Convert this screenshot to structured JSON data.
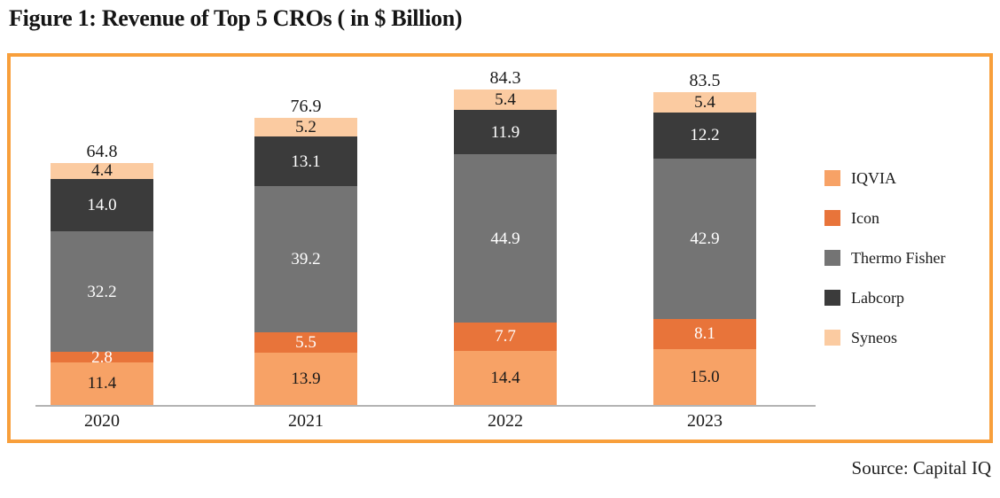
{
  "figure": {
    "title": "Figure 1: Revenue of Top 5 CROs ( in $ Billion)",
    "source": "Source: Capital IQ"
  },
  "colors": {
    "frame_border": "#F89F3B",
    "axis_line": "#B3B3B3",
    "text_dark": "#1A1A1A",
    "text_light": "#FFFFFF"
  },
  "chart_data": {
    "type": "bar",
    "stacked": true,
    "title": "Revenue of Top 5 CROs (in $ Billion)",
    "xlabel": "",
    "ylabel": "",
    "grid": false,
    "value_labels": true,
    "legend_position": "right",
    "categories": [
      "2020",
      "2021",
      "2022",
      "2023"
    ],
    "series": [
      {
        "name": "IQVIA",
        "color": "#F7A266",
        "label_color": "#1A1A1A",
        "values": [
          11.4,
          13.9,
          14.4,
          15.0
        ]
      },
      {
        "name": "Icon",
        "color": "#E8743A",
        "label_color": "#FFFFFF",
        "values": [
          2.8,
          5.5,
          7.7,
          8.1
        ]
      },
      {
        "name": "Thermo Fisher",
        "color": "#747474",
        "label_color": "#FFFFFF",
        "values": [
          32.2,
          39.2,
          44.9,
          42.9
        ]
      },
      {
        "name": "Labcorp",
        "color": "#3B3B3B",
        "label_color": "#FFFFFF",
        "values": [
          14.0,
          13.1,
          11.9,
          12.2
        ]
      },
      {
        "name": "Syneos",
        "color": "#FBCBA1",
        "label_color": "#1A1A1A",
        "values": [
          4.4,
          5.2,
          5.4,
          5.4
        ]
      }
    ],
    "totals": [
      64.8,
      76.9,
      84.3,
      83.5
    ]
  }
}
